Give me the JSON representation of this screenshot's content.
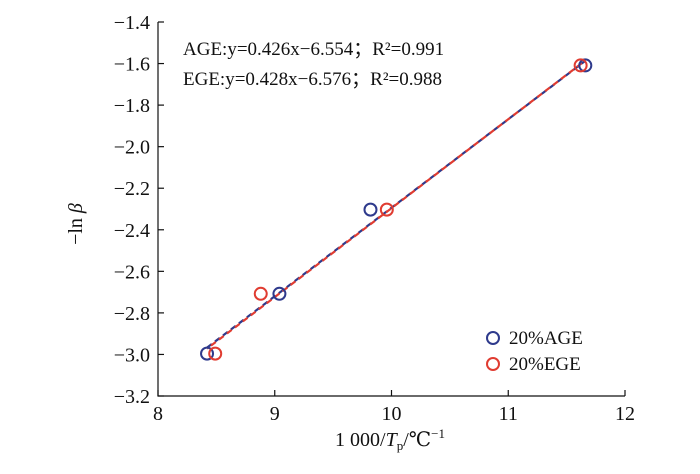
{
  "chart_data": {
    "type": "scatter",
    "title": "",
    "xlabel_prefix": "1 000/",
    "xlabel_var": "T",
    "xlabel_sub": "p",
    "xlabel_unit": "/℃",
    "xlabel_sup": "−1",
    "ylabel_prefix": "−ln ",
    "ylabel_var": "β",
    "xlim": [
      8,
      12
    ],
    "ylim": [
      -3.2,
      -1.4
    ],
    "xticks": [
      8,
      9,
      10,
      11,
      12
    ],
    "xtick_labels": [
      "8",
      "9",
      "10",
      "11",
      "12"
    ],
    "yticks": [
      -1.4,
      -1.6,
      -1.8,
      -2.0,
      -2.2,
      -2.4,
      -2.6,
      -2.8,
      -3.0,
      -3.2
    ],
    "ytick_labels": [
      "−1.4",
      "−1.6",
      "−1.8",
      "−2.0",
      "−2.2",
      "−2.4",
      "−2.6",
      "−2.8",
      "−3.0",
      "−3.2"
    ],
    "grid": false,
    "legend_position": "bottom-right",
    "annotations": [
      {
        "prefix": "AGE:",
        "body": "y=0.426x−6.554；R²=0.991"
      },
      {
        "prefix": "EGE:",
        "body": "y=0.428x−6.576；R²=0.988"
      }
    ],
    "series": [
      {
        "name": "20%AGE",
        "color": "#2e3a8c",
        "marker": "open-circle",
        "x": [
          8.42,
          9.04,
          9.82,
          11.66
        ],
        "y": [
          -2.996,
          -2.708,
          -2.303,
          -1.609
        ],
        "fit": {
          "slope": 0.426,
          "intercept": -6.554,
          "x_range": [
            8.42,
            11.66
          ]
        }
      },
      {
        "name": "20%EGE",
        "color": "#e03c31",
        "marker": "open-circle",
        "x": [
          8.49,
          8.88,
          9.96,
          11.62
        ],
        "y": [
          -2.996,
          -2.708,
          -2.303,
          -1.609
        ],
        "fit": {
          "slope": 0.428,
          "intercept": -6.576,
          "x_range": [
            8.42,
            11.66
          ]
        }
      }
    ]
  }
}
